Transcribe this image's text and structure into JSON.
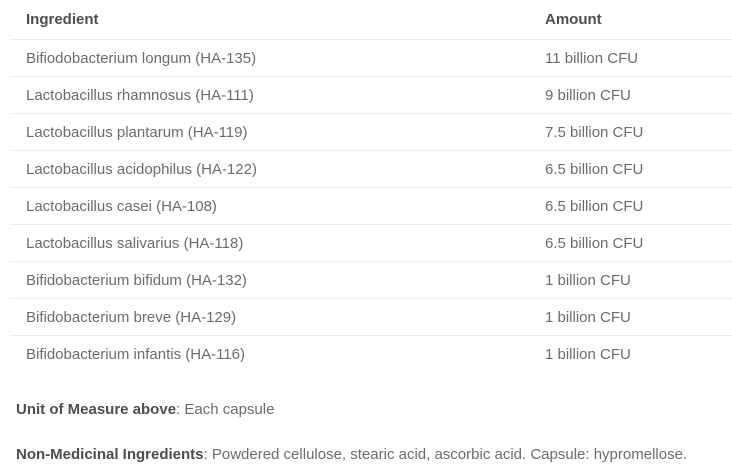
{
  "colors": {
    "text_dark": "#4d4e50",
    "text_body": "#6b6c6e",
    "border": "#ebebeb",
    "background": "#ffffff"
  },
  "table": {
    "columns": [
      "Ingredient",
      "Amount"
    ],
    "rows": [
      {
        "ingredient": "Bifiodobacterium longum (HA-135)",
        "amount": "11 billion CFU"
      },
      {
        "ingredient": "Lactobacillus rhamnosus (HA-111)",
        "amount": "9 billion CFU"
      },
      {
        "ingredient": "Lactobacillus plantarum (HA-119)",
        "amount": "7.5 billion CFU"
      },
      {
        "ingredient": "Lactobacillus acidophilus (HA-122)",
        "amount": "6.5 billion CFU"
      },
      {
        "ingredient": "Lactobacillus casei (HA-108)",
        "amount": "6.5 billion CFU"
      },
      {
        "ingredient": "Lactobacillus salivarius (HA-118)",
        "amount": "6.5 billion CFU"
      },
      {
        "ingredient": "Bifidobacterium bifidum (HA-132)",
        "amount": "1 billion CFU"
      },
      {
        "ingredient": "Bifidobacterium breve (HA-129)",
        "amount": "1 billion CFU"
      },
      {
        "ingredient": "Bifidobacterium infantis (HA-116)",
        "amount": "1 billion CFU"
      }
    ]
  },
  "footnotes": [
    {
      "label": "Unit of Measure above",
      "text": ": Each capsule"
    },
    {
      "label": "Non-Medicinal Ingredients",
      "text": ": Powdered cellulose, stearic acid, ascorbic acid. Capsule: hypromellose."
    }
  ]
}
